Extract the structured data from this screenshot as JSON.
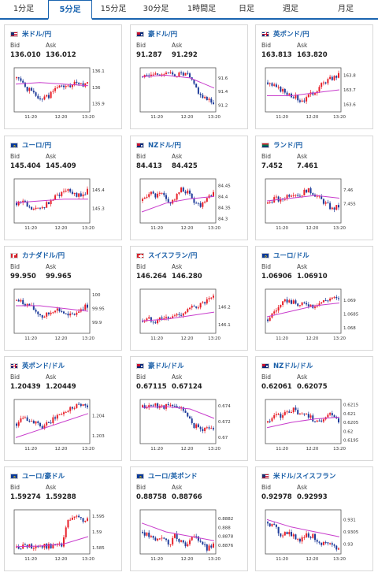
{
  "tabs": [
    {
      "label": "1分足",
      "active": false
    },
    {
      "label": "5分足",
      "active": true
    },
    {
      "label": "15分足",
      "active": false
    },
    {
      "label": "30分足",
      "active": false
    },
    {
      "label": "1時間足",
      "active": false
    },
    {
      "label": "日足",
      "active": false
    },
    {
      "label": "週足",
      "active": false
    },
    {
      "label": "月足",
      "active": false
    }
  ],
  "labels": {
    "bid": "Bid",
    "ask": "Ask"
  },
  "colors": {
    "up": "#e8202a",
    "down": "#1f3c9a",
    "ma": "#c83ccc",
    "accent": "#1a64b0"
  },
  "cards": [
    {
      "pair": "米ドル/円",
      "flag": "us-flag-icon",
      "bid": "136.010",
      "ask": "136.012",
      "chart_data": {
        "type": "candlestick",
        "x_ticks": [
          "11:20",
          "12:20",
          "13:20"
        ],
        "y_ticks": [
          "136.1",
          "136",
          "135.9"
        ],
        "ylim": [
          135.85,
          136.12
        ],
        "seed": 1,
        "trend": [
          136.06,
          136.02,
          135.98,
          135.95,
          135.93,
          135.95,
          135.99,
          136.01,
          136.0,
          136.02,
          136.01,
          136.04
        ],
        "ma": [
          136.02,
          136.03,
          136.02,
          136.01
        ]
      }
    },
    {
      "pair": "豪ドル/円",
      "flag": "au-flag-icon",
      "bid": "91.287",
      "ask": "91.292",
      "chart_data": {
        "type": "candlestick",
        "x_ticks": [
          "11:20",
          "12:20",
          "13:20"
        ],
        "y_ticks": [
          "91.6",
          "91.4",
          "91.2"
        ],
        "ylim": [
          91.1,
          91.75
        ],
        "seed": 2,
        "trend": [
          91.62,
          91.64,
          91.66,
          91.67,
          91.66,
          91.65,
          91.66,
          91.64,
          91.5,
          91.35,
          91.27,
          91.25
        ],
        "ma": [
          91.62,
          91.64,
          91.6,
          91.45
        ]
      }
    },
    {
      "pair": "英ポンド/円",
      "flag": "gb-flag-icon",
      "bid": "163.813",
      "ask": "163.820",
      "chart_data": {
        "type": "candlestick",
        "x_ticks": [
          "11:20",
          "12:20",
          "13:20"
        ],
        "y_ticks": [
          "163.8",
          "163.7",
          "163.6"
        ],
        "ylim": [
          163.55,
          163.85
        ],
        "seed": 3,
        "trend": [
          163.75,
          163.72,
          163.7,
          163.68,
          163.66,
          163.63,
          163.64,
          163.68,
          163.72,
          163.76,
          163.78,
          163.8
        ],
        "ma": [
          163.66,
          163.66,
          163.68,
          163.7
        ]
      }
    },
    {
      "pair": "ユーロ/円",
      "flag": "eu-flag-icon",
      "bid": "145.404",
      "ask": "145.409",
      "chart_data": {
        "type": "candlestick",
        "x_ticks": [
          "11:20",
          "12:20",
          "13:20"
        ],
        "y_ticks": [
          "145.4",
          "145.3"
        ],
        "ylim": [
          145.22,
          145.46
        ],
        "seed": 4,
        "trend": [
          145.33,
          145.34,
          145.3,
          145.29,
          145.31,
          145.33,
          145.36,
          145.39,
          145.41,
          145.38,
          145.36,
          145.4
        ],
        "ma": [
          145.33,
          145.34,
          145.35,
          145.35
        ]
      }
    },
    {
      "pair": "NZドル/円",
      "flag": "nz-flag-icon",
      "bid": "84.413",
      "ask": "84.425",
      "chart_data": {
        "type": "candlestick",
        "x_ticks": [
          "11:20",
          "12:20",
          "13:20"
        ],
        "y_ticks": [
          "84.45",
          "84.4",
          "84.35",
          "84.3"
        ],
        "ylim": [
          84.28,
          84.48
        ],
        "seed": 5,
        "trend": [
          84.38,
          84.42,
          84.4,
          84.41,
          84.37,
          84.39,
          84.43,
          84.42,
          84.38,
          84.36,
          84.4,
          84.42
        ],
        "ma": [
          84.33,
          84.37,
          84.39,
          84.4
        ]
      }
    },
    {
      "pair": "ランド/円",
      "flag": "za-flag-icon",
      "bid": "7.452",
      "ask": "7.461",
      "chart_data": {
        "type": "candlestick",
        "x_ticks": [
          "11:20",
          "12:20",
          "13:20"
        ],
        "y_ticks": [
          "7.46",
          "7.455"
        ],
        "ylim": [
          7.448,
          7.464
        ],
        "seed": 6,
        "trend": [
          7.455,
          7.457,
          7.456,
          7.458,
          7.459,
          7.458,
          7.46,
          7.459,
          7.457,
          7.455,
          7.453,
          7.454
        ],
        "ma": [
          7.456,
          7.457,
          7.458,
          7.457
        ]
      }
    },
    {
      "pair": "カナダドル/円",
      "flag": "ca-flag-icon",
      "bid": "99.950",
      "ask": "99.965",
      "chart_data": {
        "type": "candlestick",
        "x_ticks": [
          "11:20",
          "12:20",
          "13:20"
        ],
        "y_ticks": [
          "100",
          "99.95",
          "99.9"
        ],
        "ylim": [
          99.86,
          100.02
        ],
        "seed": 7,
        "trend": [
          99.98,
          99.97,
          99.96,
          99.94,
          99.92,
          99.93,
          99.95,
          99.94,
          99.92,
          99.93,
          99.95,
          99.96
        ],
        "ma": [
          99.96,
          99.96,
          99.95,
          99.94
        ]
      }
    },
    {
      "pair": "スイスフラン/円",
      "flag": "ch-flag-icon",
      "bid": "146.264",
      "ask": "146.280",
      "chart_data": {
        "type": "candlestick",
        "x_ticks": [
          "11:20",
          "12:20",
          "13:20"
        ],
        "y_ticks": [
          "146.2",
          "146.1"
        ],
        "ylim": [
          146.05,
          146.3
        ],
        "seed": 8,
        "trend": [
          146.12,
          146.13,
          146.12,
          146.14,
          146.13,
          146.15,
          146.16,
          146.18,
          146.2,
          146.21,
          146.23,
          146.25
        ],
        "ma": [
          146.12,
          146.13,
          146.15,
          146.17
        ]
      }
    },
    {
      "pair": "ユーロ/ドル",
      "flag": "eu-us-flag-icon",
      "bid": "1.06906",
      "ask": "1.06910",
      "chart_data": {
        "type": "candlestick",
        "x_ticks": [
          "11:20",
          "12:20",
          "13:20"
        ],
        "y_ticks": [
          "1.069",
          "1.0685",
          "1.068"
        ],
        "ylim": [
          1.0678,
          1.0694
        ],
        "seed": 9,
        "trend": [
          1.0683,
          1.0686,
          1.0688,
          1.069,
          1.0689,
          1.0688,
          1.0689,
          1.0688,
          1.0689,
          1.069,
          1.0691,
          1.069
        ],
        "ma": [
          1.0684,
          1.0686,
          1.0688,
          1.0689
        ]
      }
    },
    {
      "pair": "英ポンド/ドル",
      "flag": "gb-us-flag-icon",
      "bid": "1.20439",
      "ask": "1.20449",
      "chart_data": {
        "type": "candlestick",
        "x_ticks": [
          "11:20",
          "12:20",
          "13:20"
        ],
        "y_ticks": [
          "1.204",
          "1.203"
        ],
        "ylim": [
          1.2026,
          1.2048
        ],
        "seed": 10,
        "trend": [
          1.2036,
          1.204,
          1.2038,
          1.2036,
          1.2034,
          1.2036,
          1.2039,
          1.2041,
          1.2043,
          1.2045,
          1.2046,
          1.2044
        ],
        "ma": [
          1.2029,
          1.2033,
          1.2037,
          1.2041
        ]
      }
    },
    {
      "pair": "豪ドル/ドル",
      "flag": "au-us-flag-icon",
      "bid": "0.67115",
      "ask": "0.67124",
      "chart_data": {
        "type": "candlestick",
        "x_ticks": [
          "11:20",
          "12:20",
          "13:20"
        ],
        "y_ticks": [
          "0.674",
          "0.672",
          "0.67"
        ],
        "ylim": [
          0.6692,
          0.6748
        ],
        "seed": 11,
        "trend": [
          0.6738,
          0.674,
          0.6741,
          0.6739,
          0.674,
          0.6738,
          0.6739,
          0.6725,
          0.6715,
          0.671,
          0.6712,
          0.6711
        ],
        "ma": [
          0.6738,
          0.6739,
          0.6736,
          0.6724
        ]
      }
    },
    {
      "pair": "NZドル/ドル",
      "flag": "nz-us-flag-icon",
      "bid": "0.62061",
      "ask": "0.62075",
      "chart_data": {
        "type": "candlestick",
        "x_ticks": [
          "11:20",
          "12:20",
          "13:20"
        ],
        "y_ticks": [
          "0.6215",
          "0.621",
          "0.6205",
          "0.62",
          "0.6195"
        ],
        "ylim": [
          0.6193,
          0.6218
        ],
        "seed": 12,
        "trend": [
          0.6205,
          0.621,
          0.6208,
          0.6211,
          0.6212,
          0.6209,
          0.621,
          0.6207,
          0.6205,
          0.6209,
          0.621,
          0.6206
        ],
        "ma": [
          0.6202,
          0.6205,
          0.6207,
          0.6208
        ]
      }
    },
    {
      "pair": "ユーロ/豪ドル",
      "flag": "eu-au-flag-icon",
      "bid": "1.59274",
      "ask": "1.59288",
      "chart_data": {
        "type": "candlestick",
        "x_ticks": [
          "11:20",
          "12:20",
          "13:20"
        ],
        "y_ticks": [
          "1.595",
          "1.59",
          "1.585"
        ],
        "ylim": [
          1.583,
          1.597
        ],
        "seed": 13,
        "trend": [
          1.5852,
          1.5855,
          1.5853,
          1.5856,
          1.5854,
          1.5855,
          1.5857,
          1.5856,
          1.5935,
          1.5945,
          1.594,
          1.5935
        ],
        "ma": [
          1.5853,
          1.5855,
          1.5862,
          1.5885
        ]
      }
    },
    {
      "pair": "ユーロ/英ポンド",
      "flag": "eu-gb-flag-icon",
      "bid": "0.88758",
      "ask": "0.88766",
      "chart_data": {
        "type": "candlestick",
        "x_ticks": [
          "11:20",
          "12:20",
          "13:20"
        ],
        "y_ticks": [
          "0.8882",
          "0.888",
          "0.8878",
          "0.8876"
        ],
        "ylim": [
          0.8874,
          0.8884
        ],
        "seed": 14,
        "trend": [
          0.8879,
          0.8878,
          0.8877,
          0.8878,
          0.8876,
          0.8878,
          0.8877,
          0.8876,
          0.8878,
          0.8877,
          0.8875,
          0.8876
        ],
        "ma": [
          0.8881,
          0.8879,
          0.8878,
          0.8877
        ]
      }
    },
    {
      "pair": "米ドル/スイスフラン",
      "flag": "us-ch-flag-icon",
      "bid": "0.92978",
      "ask": "0.92993",
      "chart_data": {
        "type": "candlestick",
        "x_ticks": [
          "11:20",
          "12:20",
          "13:20"
        ],
        "y_ticks": [
          "0.931",
          "0.9305",
          "0.93"
        ],
        "ylim": [
          0.9296,
          0.9314
        ],
        "seed": 15,
        "trend": [
          0.9309,
          0.9307,
          0.9304,
          0.9305,
          0.9303,
          0.9302,
          0.9304,
          0.9303,
          0.9301,
          0.93,
          0.9299,
          0.9298
        ],
        "ma": [
          0.931,
          0.9307,
          0.9305,
          0.9303
        ]
      }
    }
  ]
}
